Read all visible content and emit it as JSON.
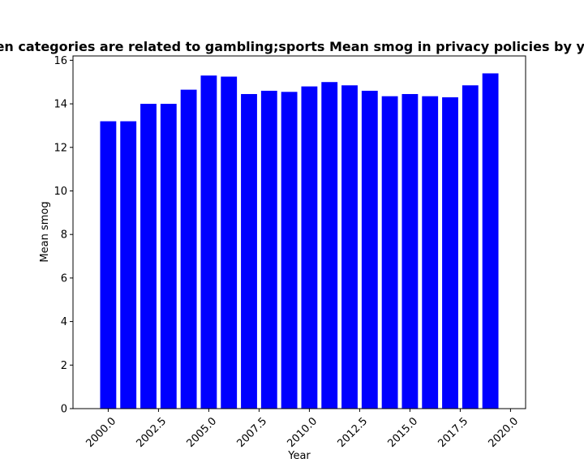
{
  "chart_data": {
    "type": "bar",
    "title": "When categories are related to gambling;sports Mean smog in privacy policies by year",
    "xlabel": "Year",
    "ylabel": "Mean smog",
    "x": [
      2000,
      2001,
      2002,
      2003,
      2004,
      2005,
      2006,
      2007,
      2008,
      2009,
      2010,
      2011,
      2012,
      2013,
      2014,
      2015,
      2016,
      2017,
      2018,
      2019
    ],
    "values": [
      13.2,
      13.2,
      14.0,
      14.0,
      14.65,
      15.3,
      15.25,
      14.45,
      14.6,
      14.55,
      14.8,
      15.0,
      14.85,
      14.6,
      14.35,
      14.45,
      14.35,
      14.3,
      14.85,
      15.4
    ],
    "xlim": [
      1998.25,
      2020.75
    ],
    "ylim": [
      0,
      16.2
    ],
    "xticks": [
      2000.0,
      2002.5,
      2005.0,
      2007.5,
      2010.0,
      2012.5,
      2015.0,
      2017.5,
      2020.0
    ],
    "xtick_labels": [
      "2000.0",
      "2002.5",
      "2005.0",
      "2007.5",
      "2010.0",
      "2012.5",
      "2015.0",
      "2017.5",
      "2020.0"
    ],
    "yticks": [
      0,
      2,
      4,
      6,
      8,
      10,
      12,
      14,
      16
    ],
    "ytick_labels": [
      "0",
      "2",
      "4",
      "6",
      "8",
      "10",
      "12",
      "14",
      "16"
    ],
    "bar_width": 0.8,
    "bar_color": "#0000ff",
    "grid": false
  }
}
